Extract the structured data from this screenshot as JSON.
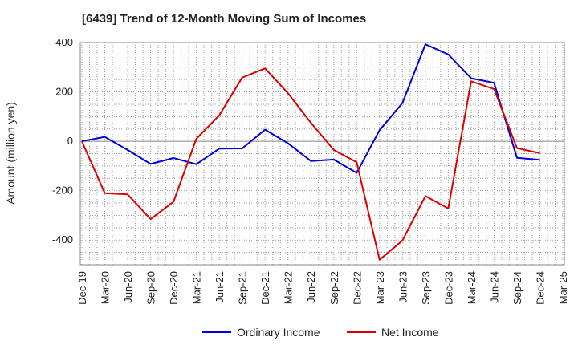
{
  "chart_data": {
    "type": "line",
    "title": "[6439]  Trend of 12-Month Moving Sum of Incomes",
    "xlabel": "",
    "ylabel": "Amount (million yen)",
    "ylim": [
      -500,
      400
    ],
    "yticks": [
      400,
      200,
      0,
      -200,
      -400
    ],
    "grid": true,
    "legend_position": "bottom-center",
    "categories": [
      "Dec-19",
      "Mar-20",
      "Jun-20",
      "Sep-20",
      "Dec-20",
      "Mar-21",
      "Jun-21",
      "Sep-21",
      "Dec-21",
      "Mar-22",
      "Jun-22",
      "Sep-22",
      "Dec-22",
      "Mar-23",
      "Jun-23",
      "Sep-23",
      "Dec-23",
      "Mar-24",
      "Jun-24",
      "Sep-24",
      "Dec-24",
      "Mar-25"
    ],
    "series": [
      {
        "name": "Ordinary Income",
        "color": "#0000dd",
        "values": [
          0,
          18,
          -35,
          -92,
          -68,
          -93,
          -30,
          -29,
          47,
          -8,
          -80,
          -74,
          -128,
          45,
          155,
          393,
          352,
          255,
          237,
          -67,
          -75,
          null
        ]
      },
      {
        "name": "Net Income",
        "color": "#dd0000",
        "values": [
          0,
          -210,
          -215,
          -315,
          -245,
          10,
          105,
          258,
          295,
          195,
          75,
          -35,
          -85,
          -480,
          -402,
          -222,
          -272,
          243,
          212,
          -28,
          -48,
          null
        ]
      }
    ]
  }
}
